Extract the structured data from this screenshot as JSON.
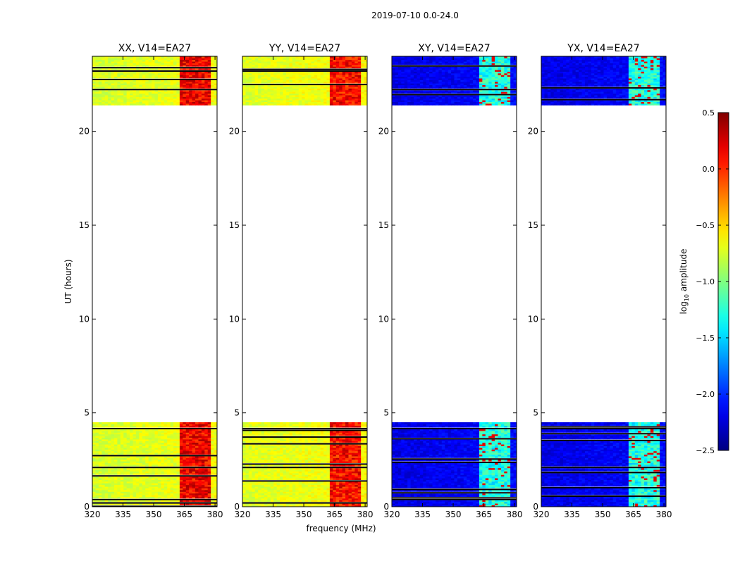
{
  "chart_data": {
    "type": "heatmap",
    "suptitle": "2019-07-10 0.0-24.0",
    "xlabel": "frequency (MHz)",
    "ylabel": "UT (hours)",
    "xlim": [
      320,
      381
    ],
    "ylim": [
      0,
      24
    ],
    "x_ticks": [
      320,
      335,
      350,
      365,
      380
    ],
    "x_tick_labels": [
      "320",
      "335",
      "350",
      "365",
      "380"
    ],
    "y_ticks": [
      0,
      5,
      10,
      15,
      20
    ],
    "y_tick_labels": [
      "0",
      "5",
      "10",
      "15",
      "20"
    ],
    "panels": [
      {
        "title": "XX, V14=EA27",
        "base_value": -0.75,
        "hot_value": 0.15,
        "flag_value": null
      },
      {
        "title": "YY, V14=EA27",
        "base_value": -0.72,
        "hot_value": 0.1,
        "flag_value": null
      },
      {
        "title": "XY, V14=EA27",
        "base_value": -2.2,
        "hot_value": -1.3,
        "flag_value": 0.2
      },
      {
        "title": "YX, V14=EA27",
        "base_value": -2.2,
        "hot_value": -1.3,
        "flag_value": 0.2
      }
    ],
    "data_time_ranges_hours": [
      [
        0.0,
        4.5
      ],
      [
        21.4,
        24.0
      ]
    ],
    "rfi_band_mhz": [
      363,
      378
    ],
    "colorbar": {
      "label_prefix": "log",
      "label_sub": "10",
      "label_suffix": " amplitude",
      "vmin": -2.5,
      "vmax": 0.5,
      "ticks": [
        0.5,
        0.0,
        -0.5,
        -1.0,
        -1.5,
        -2.0,
        -2.5
      ],
      "tick_labels": [
        "0.5",
        "0.0",
        "−0.5",
        "−1.0",
        "−1.5",
        "−2.0",
        "−2.5"
      ],
      "colormap": "jet"
    }
  }
}
